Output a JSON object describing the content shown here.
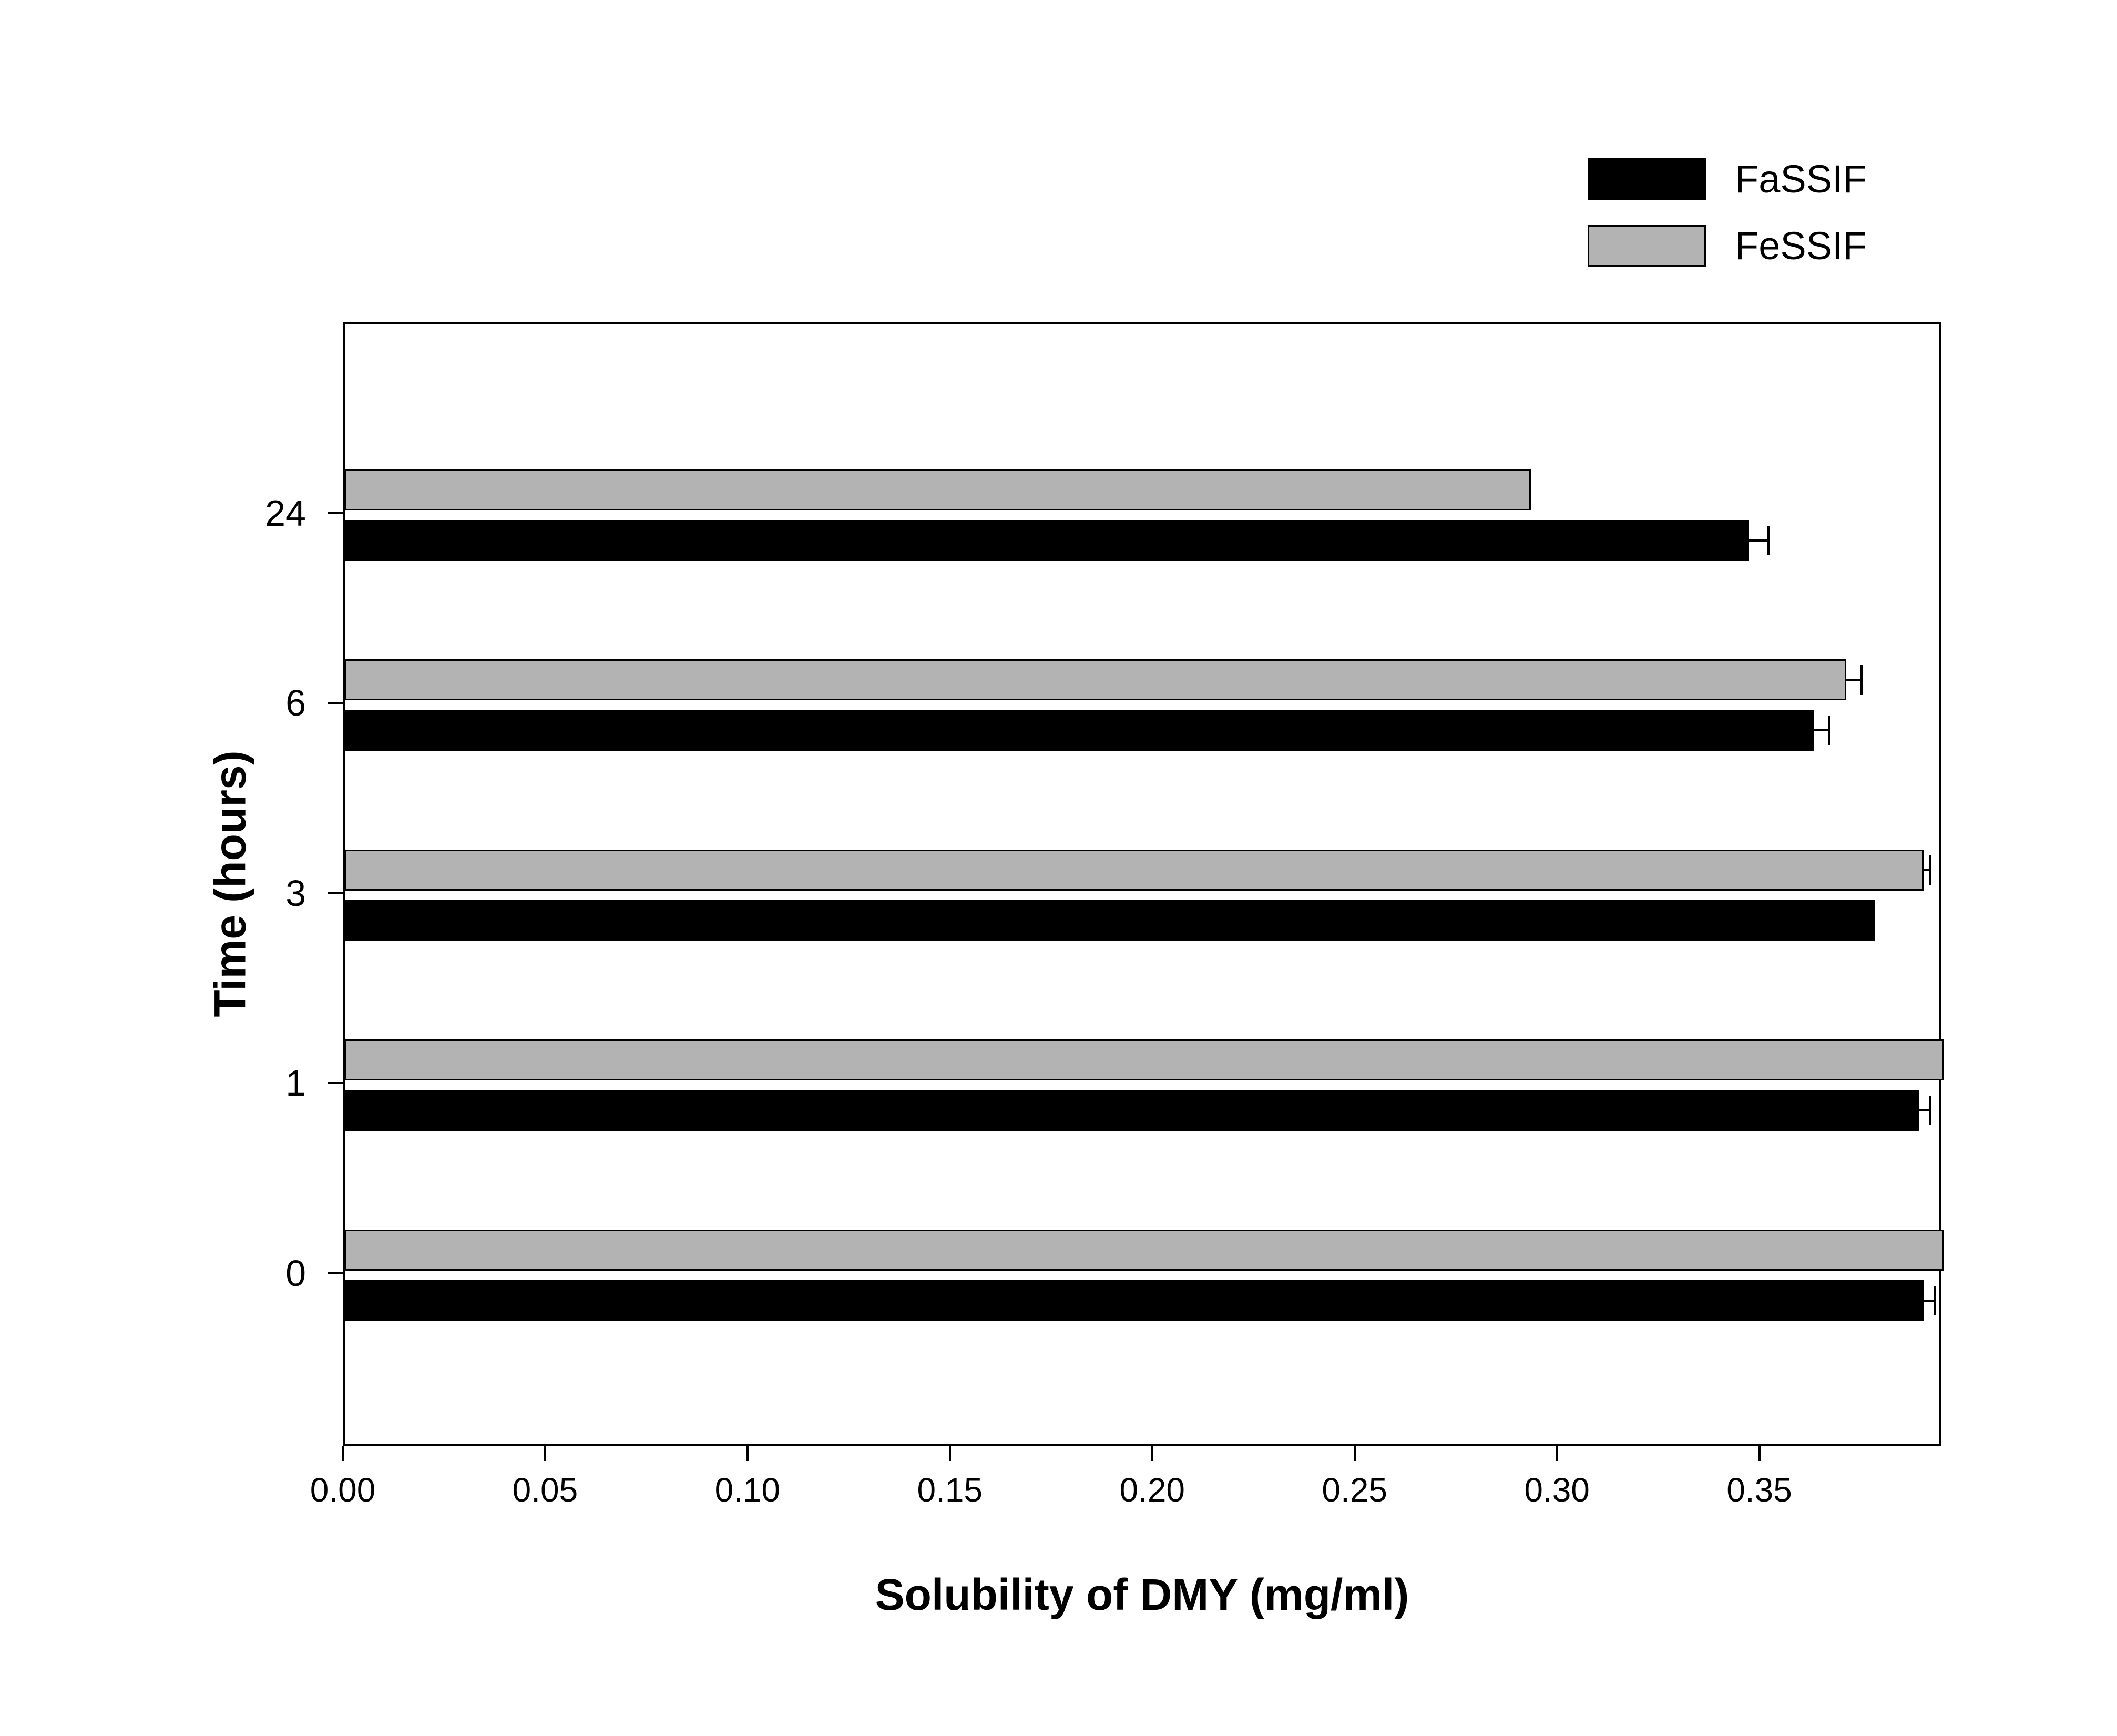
{
  "chart_data": {
    "type": "bar",
    "orientation": "horizontal",
    "title": "",
    "xlabel": "Solubility of DMY (mg/ml)",
    "ylabel": "Time (hours)",
    "categories": [
      "0",
      "1",
      "3",
      "6",
      "24"
    ],
    "series": [
      {
        "name": "FaSSIF",
        "color": "#000000",
        "values": [
          0.39,
          0.389,
          0.378,
          0.363,
          0.347
        ],
        "errors": [
          0.003,
          0.003,
          0,
          0.004,
          0.005
        ]
      },
      {
        "name": "FeSSIF",
        "color": "#b3b3b3",
        "values": [
          0.395,
          0.395,
          0.39,
          0.371,
          0.293
        ],
        "errors": [
          0,
          0,
          0.002,
          0.004,
          0
        ]
      }
    ],
    "xlim": [
      0,
      0.395
    ],
    "xticks": [
      0,
      0.05,
      0.1,
      0.15,
      0.2,
      0.25,
      0.3,
      0.35
    ],
    "legend_position": "top-right",
    "grid": false
  }
}
